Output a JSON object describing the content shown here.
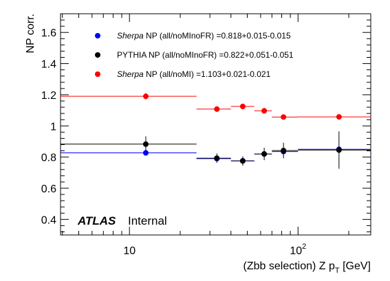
{
  "chart_data": {
    "type": "scatter",
    "ylabel": "NP corr.",
    "xlabel_main": "(Zbb selection) Z p",
    "xlabel_sub": "T",
    "xlabel_unit": " [GeV]",
    "xscale": "log",
    "xlim": [
      3.9,
      270
    ],
    "ylim": [
      0.3,
      1.72
    ],
    "grid": false,
    "x_tick_labels": [
      {
        "value": 10,
        "base": "10",
        "exp": ""
      },
      {
        "value": 100,
        "base": "10",
        "exp": "2"
      }
    ],
    "y_ticks": [
      {
        "value": 0.4,
        "label": "0.4"
      },
      {
        "value": 0.6,
        "label": "0.6"
      },
      {
        "value": 0.8,
        "label": "0.8"
      },
      {
        "value": 1.0,
        "label": "1"
      },
      {
        "value": 1.2,
        "label": "1.2"
      },
      {
        "value": 1.4,
        "label": "1.4"
      },
      {
        "value": 1.6,
        "label": "1.6"
      }
    ],
    "legend": {
      "placement": "top",
      "entries": [
        {
          "series": "sherpa_np_all_nomlnofr",
          "label": "Sherpa NP (all/noMInoFR) =0.818+0.015-0.015",
          "italic_prefix": "Sherpa",
          "rest": " NP (all/noMInoFR) =0.818+0.015-0.015"
        },
        {
          "series": "pythia_np_all_nomlnofr",
          "label": "PYTHIA NP (all/noMInoFR) =0.822+0.051-0.051",
          "italic_prefix": "",
          "rest": "PYTHIA NP (all/noMInoFR) =0.822+0.051-0.051"
        },
        {
          "series": "sherpa_np_all_noml",
          "label": "Sherpa NP (all/noMI)     =1.103+0.021-0.021",
          "italic_prefix": "Sherpa",
          "rest": " NP (all/noMI)     =1.103+0.021-0.021"
        }
      ]
    },
    "series": [
      {
        "id": "sherpa_np_all_nomlnofr",
        "color": "#0000ff",
        "points": [
          {
            "x": 12.5,
            "xlo": 3.9,
            "xhi": 25,
            "y": 0.827,
            "yerr": 0.008
          },
          {
            "x": 33,
            "xlo": 25,
            "xhi": 40,
            "y": 0.79,
            "yerr": 0.007
          },
          {
            "x": 47,
            "xlo": 40,
            "xhi": 55,
            "y": 0.776,
            "yerr": 0.007
          },
          {
            "x": 63,
            "xlo": 55,
            "xhi": 70,
            "y": 0.82,
            "yerr": 0.008
          },
          {
            "x": 82,
            "xlo": 70,
            "xhi": 100,
            "y": 0.835,
            "yerr": 0.008
          },
          {
            "x": 175,
            "xlo": 100,
            "xhi": 270,
            "y": 0.85,
            "yerr": 0.01
          }
        ]
      },
      {
        "id": "pythia_np_all_nomlnofr",
        "color": "#000000",
        "points": [
          {
            "x": 12.5,
            "xlo": 3.9,
            "xhi": 25,
            "y": 0.883,
            "yerr": 0.05
          },
          {
            "x": 33,
            "xlo": 25,
            "xhi": 40,
            "y": 0.793,
            "yerr": 0.03
          },
          {
            "x": 47,
            "xlo": 40,
            "xhi": 55,
            "y": 0.775,
            "yerr": 0.03
          },
          {
            "x": 63,
            "xlo": 55,
            "xhi": 70,
            "y": 0.82,
            "yerr": 0.04
          },
          {
            "x": 82,
            "xlo": 70,
            "xhi": 100,
            "y": 0.842,
            "yerr": 0.05
          },
          {
            "x": 175,
            "xlo": 100,
            "xhi": 270,
            "y": 0.845,
            "yerr": 0.12
          }
        ]
      },
      {
        "id": "sherpa_np_all_noml",
        "color": "#ff0000",
        "points": [
          {
            "x": 12.5,
            "xlo": 3.9,
            "xhi": 25,
            "y": 1.19,
            "yerr": 0.02
          },
          {
            "x": 33,
            "xlo": 25,
            "xhi": 40,
            "y": 1.108,
            "yerr": 0.018
          },
          {
            "x": 47,
            "xlo": 40,
            "xhi": 55,
            "y": 1.125,
            "yerr": 0.018
          },
          {
            "x": 63,
            "xlo": 55,
            "xhi": 70,
            "y": 1.097,
            "yerr": 0.016
          },
          {
            "x": 82,
            "xlo": 70,
            "xhi": 100,
            "y": 1.057,
            "yerr": 0.014
          },
          {
            "x": 175,
            "xlo": 100,
            "xhi": 270,
            "y": 1.058,
            "yerr": 0.012
          }
        ]
      }
    ],
    "annotations": [
      {
        "text": "ATLAS",
        "style": "bold-italic"
      },
      {
        "text": "Internal",
        "style": "normal"
      }
    ]
  }
}
